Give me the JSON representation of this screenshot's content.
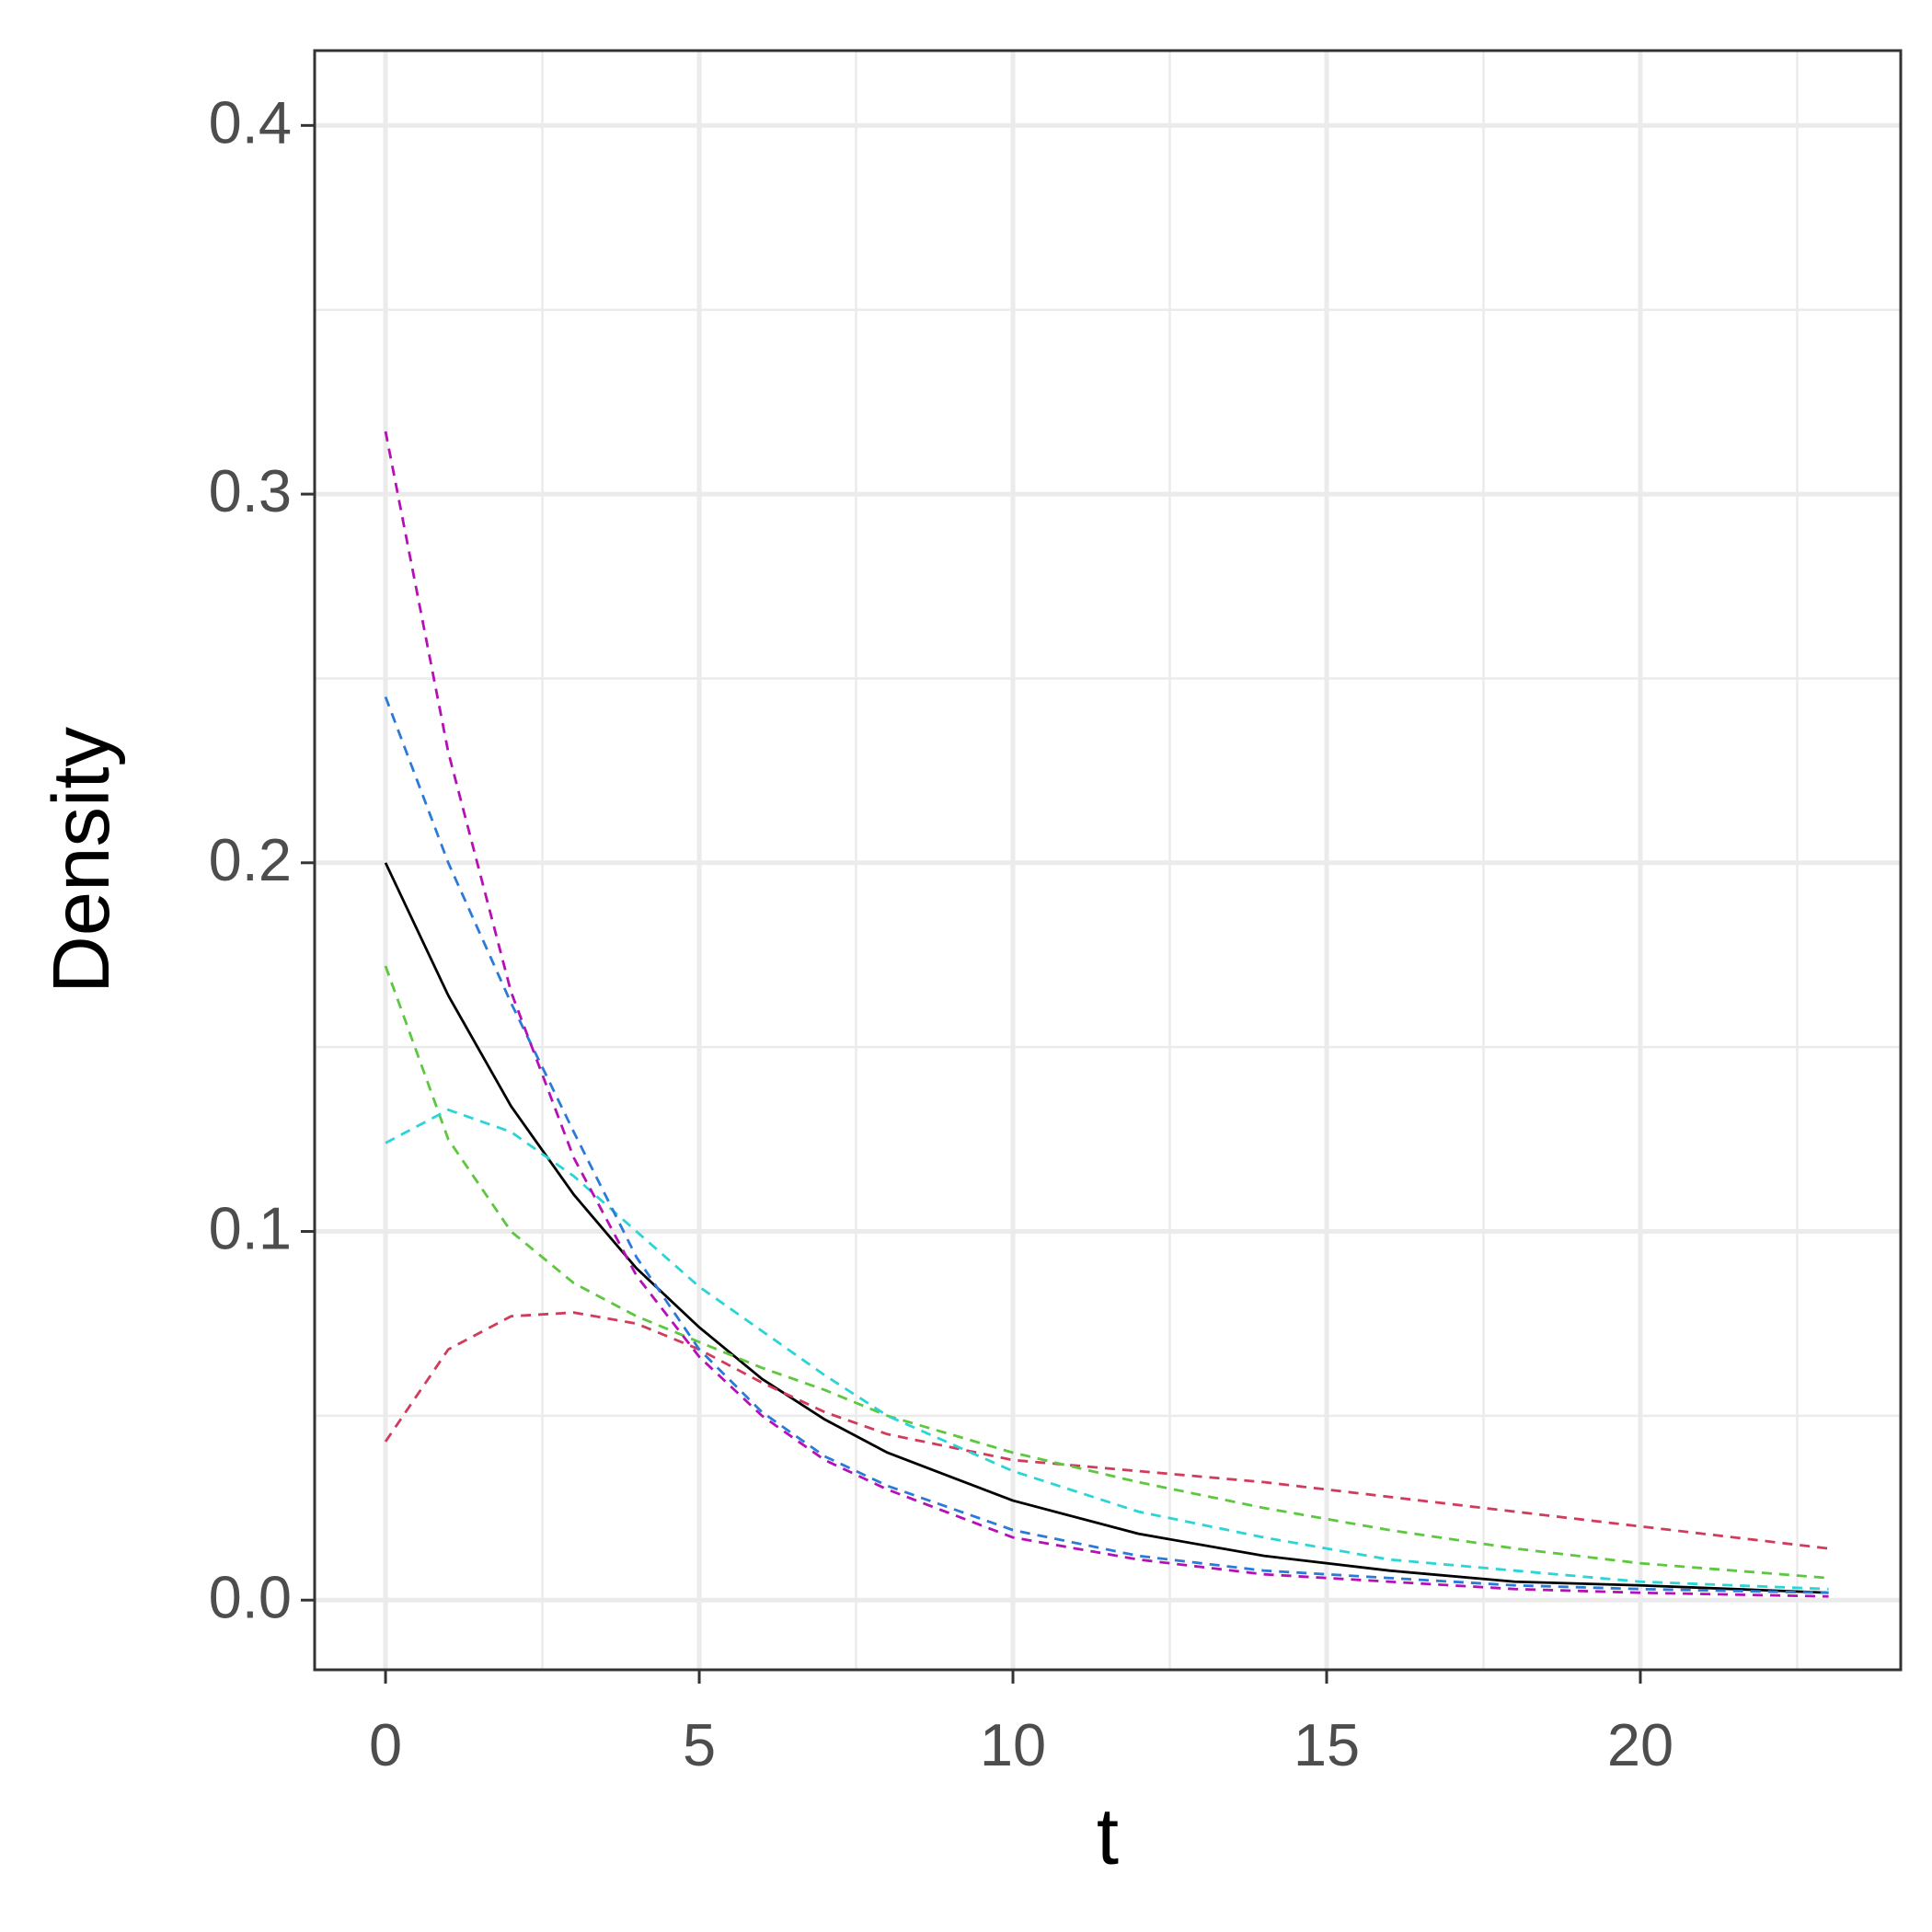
{
  "chart_data": {
    "type": "line",
    "x_label": "t",
    "y_label": "Density",
    "x": [
      0,
      1,
      2,
      3,
      4,
      5,
      6,
      7,
      8,
      10,
      12,
      14,
      16,
      18,
      20,
      23
    ],
    "series": [
      {
        "color": "#000000",
        "linetype": "solid",
        "values": [
          0.2,
          0.164,
          0.134,
          0.11,
          0.09,
          0.074,
          0.06,
          0.049,
          0.04,
          0.027,
          0.018,
          0.012,
          0.008,
          0.005,
          0.004,
          0.002
        ]
      },
      {
        "color": "#d13b5c",
        "linetype": "dashed",
        "values": [
          0.043,
          0.068,
          0.077,
          0.078,
          0.075,
          0.068,
          0.059,
          0.051,
          0.045,
          0.038,
          0.035,
          0.032,
          0.028,
          0.024,
          0.02,
          0.014
        ]
      },
      {
        "color": "#5cc73f",
        "linetype": "dashed",
        "values": [
          0.172,
          0.125,
          0.1,
          0.086,
          0.077,
          0.07,
          0.063,
          0.057,
          0.05,
          0.04,
          0.032,
          0.025,
          0.019,
          0.014,
          0.01,
          0.006
        ]
      },
      {
        "color": "#2bd4d6",
        "linetype": "dashed",
        "values": [
          0.124,
          0.133,
          0.127,
          0.115,
          0.1,
          0.085,
          0.073,
          0.061,
          0.05,
          0.035,
          0.024,
          0.017,
          0.011,
          0.008,
          0.005,
          0.003
        ]
      },
      {
        "color": "#2a7ad8",
        "linetype": "dashed",
        "values": [
          0.245,
          0.2,
          0.162,
          0.127,
          0.093,
          0.068,
          0.051,
          0.039,
          0.031,
          0.019,
          0.012,
          0.008,
          0.006,
          0.004,
          0.003,
          0.002
        ]
      },
      {
        "color": "#b50fb5",
        "linetype": "dashed",
        "values": [
          0.317,
          0.23,
          0.165,
          0.12,
          0.088,
          0.066,
          0.05,
          0.038,
          0.03,
          0.017,
          0.011,
          0.007,
          0.005,
          0.003,
          0.002,
          0.001
        ]
      }
    ],
    "xlim": [
      -1.13,
      24.15
    ],
    "ylim": [
      -0.0189,
      0.4203
    ],
    "xticks": [
      0,
      5,
      10,
      15,
      20
    ],
    "yticks": [
      {
        "value": 0,
        "label": "0.0"
      },
      0.1,
      0.2,
      0.3,
      0.4
    ],
    "x_minor_grid": [
      2.5,
      7.5,
      12.5,
      17.5,
      22.5
    ],
    "y_minor_grid": [
      0.05,
      0.15,
      0.25,
      0.35
    ],
    "grid": true
  }
}
